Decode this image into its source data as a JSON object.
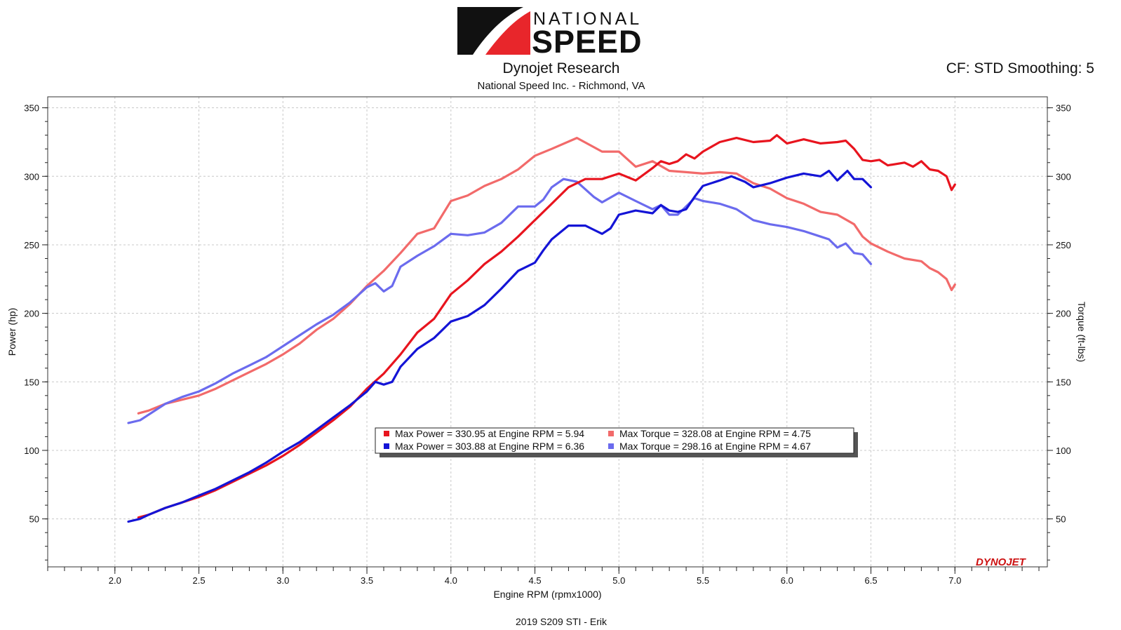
{
  "brand": {
    "logo_top": "NATIONAL",
    "logo_bottom": "SPEED",
    "dyno_mark": "DYNOJET",
    "logo_red": "#e8262b"
  },
  "header": {
    "title": "Dynojet Research",
    "subtitle": "National Speed Inc. - Richmond, VA",
    "settings": "CF: STD Smoothing: 5"
  },
  "footer": {
    "run_name": "2019 S209 STI - Erik"
  },
  "chart_data": {
    "type": "line",
    "xlabel": "Engine RPM (rpmx1000)",
    "ylabel_left": "Power (hp)",
    "ylabel_right": "Torque (ft-lbs)",
    "xlim": [
      1.6,
      7.55
    ],
    "ylim": [
      15,
      358
    ],
    "x_ticks": [
      2.0,
      2.5,
      3.0,
      3.5,
      4.0,
      4.5,
      5.0,
      5.5,
      6.0,
      6.5,
      7.0
    ],
    "x_tick_labels": [
      "2.0",
      "2.5",
      "3.0",
      "3.5",
      "4.0",
      "4.5",
      "5.0",
      "5.5",
      "6.0",
      "6.5",
      "7.0"
    ],
    "y_ticks": [
      50,
      100,
      150,
      200,
      250,
      300,
      350
    ],
    "y_tick_labels": [
      "50",
      "100",
      "150",
      "200",
      "250",
      "300",
      "350"
    ],
    "grid": true,
    "legend": [
      {
        "color": "#e8141e",
        "text": "Max Power = 330.95 at Engine RPM = 5.94"
      },
      {
        "color": "#f26a6a",
        "text": "Max Torque = 328.08 at Engine RPM = 4.75"
      },
      {
        "color": "#1414d6",
        "text": "Max Power = 303.88 at Engine RPM = 6.36"
      },
      {
        "color": "#6b6bee",
        "text": "Max Torque = 298.16 at Engine RPM = 4.67"
      }
    ],
    "series": [
      {
        "kind": "power",
        "color": "#e8141e",
        "points": [
          [
            2.14,
            51
          ],
          [
            2.2,
            53
          ],
          [
            2.3,
            58
          ],
          [
            2.4,
            62
          ],
          [
            2.5,
            66
          ],
          [
            2.6,
            71
          ],
          [
            2.7,
            77
          ],
          [
            2.8,
            83
          ],
          [
            2.9,
            89
          ],
          [
            3.0,
            96
          ],
          [
            3.1,
            104
          ],
          [
            3.2,
            113
          ],
          [
            3.3,
            122
          ],
          [
            3.4,
            132
          ],
          [
            3.5,
            145
          ],
          [
            3.6,
            156
          ],
          [
            3.7,
            170
          ],
          [
            3.8,
            186
          ],
          [
            3.9,
            196
          ],
          [
            4.0,
            214
          ],
          [
            4.1,
            224
          ],
          [
            4.2,
            236
          ],
          [
            4.3,
            245
          ],
          [
            4.4,
            256
          ],
          [
            4.5,
            268
          ],
          [
            4.6,
            280
          ],
          [
            4.7,
            292
          ],
          [
            4.8,
            298
          ],
          [
            4.9,
            298
          ],
          [
            5.0,
            302
          ],
          [
            5.1,
            297
          ],
          [
            5.2,
            306
          ],
          [
            5.25,
            311
          ],
          [
            5.3,
            309
          ],
          [
            5.35,
            311
          ],
          [
            5.4,
            316
          ],
          [
            5.45,
            313
          ],
          [
            5.5,
            318
          ],
          [
            5.6,
            325
          ],
          [
            5.7,
            328
          ],
          [
            5.8,
            325
          ],
          [
            5.9,
            326
          ],
          [
            5.94,
            330
          ],
          [
            6.0,
            324
          ],
          [
            6.1,
            327
          ],
          [
            6.2,
            324
          ],
          [
            6.3,
            325
          ],
          [
            6.35,
            326
          ],
          [
            6.4,
            320
          ],
          [
            6.45,
            312
          ],
          [
            6.5,
            311
          ],
          [
            6.55,
            312
          ],
          [
            6.6,
            308
          ],
          [
            6.7,
            310
          ],
          [
            6.75,
            307
          ],
          [
            6.8,
            311
          ],
          [
            6.85,
            305
          ],
          [
            6.9,
            304
          ],
          [
            6.95,
            300
          ],
          [
            6.98,
            290
          ],
          [
            7.0,
            294
          ]
        ]
      },
      {
        "kind": "torque",
        "color": "#f26a6a",
        "points": [
          [
            2.14,
            127
          ],
          [
            2.2,
            129
          ],
          [
            2.3,
            134
          ],
          [
            2.4,
            137
          ],
          [
            2.5,
            140
          ],
          [
            2.6,
            145
          ],
          [
            2.7,
            151
          ],
          [
            2.8,
            157
          ],
          [
            2.9,
            163
          ],
          [
            3.0,
            170
          ],
          [
            3.1,
            178
          ],
          [
            3.2,
            188
          ],
          [
            3.3,
            196
          ],
          [
            3.4,
            207
          ],
          [
            3.5,
            220
          ],
          [
            3.6,
            231
          ],
          [
            3.7,
            244
          ],
          [
            3.8,
            258
          ],
          [
            3.9,
            262
          ],
          [
            4.0,
            282
          ],
          [
            4.1,
            286
          ],
          [
            4.2,
            293
          ],
          [
            4.3,
            298
          ],
          [
            4.4,
            305
          ],
          [
            4.5,
            315
          ],
          [
            4.6,
            320
          ],
          [
            4.75,
            328
          ],
          [
            4.9,
            318
          ],
          [
            5.0,
            318
          ],
          [
            5.1,
            307
          ],
          [
            5.2,
            311
          ],
          [
            5.3,
            304
          ],
          [
            5.4,
            303
          ],
          [
            5.5,
            302
          ],
          [
            5.6,
            303
          ],
          [
            5.7,
            302
          ],
          [
            5.8,
            295
          ],
          [
            5.9,
            291
          ],
          [
            6.0,
            284
          ],
          [
            6.1,
            280
          ],
          [
            6.2,
            274
          ],
          [
            6.3,
            272
          ],
          [
            6.4,
            265
          ],
          [
            6.45,
            256
          ],
          [
            6.5,
            251
          ],
          [
            6.6,
            245
          ],
          [
            6.7,
            240
          ],
          [
            6.8,
            238
          ],
          [
            6.85,
            233
          ],
          [
            6.9,
            230
          ],
          [
            6.95,
            225
          ],
          [
            6.98,
            217
          ],
          [
            7.0,
            221
          ]
        ]
      },
      {
        "kind": "power",
        "color": "#1414d6",
        "points": [
          [
            2.08,
            48
          ],
          [
            2.15,
            50
          ],
          [
            2.2,
            53
          ],
          [
            2.3,
            58
          ],
          [
            2.4,
            62
          ],
          [
            2.5,
            67
          ],
          [
            2.6,
            72
          ],
          [
            2.7,
            78
          ],
          [
            2.8,
            84
          ],
          [
            2.9,
            91
          ],
          [
            3.0,
            99
          ],
          [
            3.1,
            106
          ],
          [
            3.2,
            115
          ],
          [
            3.3,
            124
          ],
          [
            3.4,
            133
          ],
          [
            3.5,
            143
          ],
          [
            3.55,
            150
          ],
          [
            3.6,
            148
          ],
          [
            3.65,
            150
          ],
          [
            3.7,
            161
          ],
          [
            3.8,
            174
          ],
          [
            3.9,
            182
          ],
          [
            4.0,
            194
          ],
          [
            4.1,
            198
          ],
          [
            4.2,
            206
          ],
          [
            4.3,
            218
          ],
          [
            4.4,
            231
          ],
          [
            4.5,
            237
          ],
          [
            4.55,
            246
          ],
          [
            4.6,
            254
          ],
          [
            4.7,
            264
          ],
          [
            4.8,
            264
          ],
          [
            4.85,
            261
          ],
          [
            4.9,
            258
          ],
          [
            4.95,
            262
          ],
          [
            5.0,
            272
          ],
          [
            5.1,
            275
          ],
          [
            5.2,
            273
          ],
          [
            5.25,
            279
          ],
          [
            5.3,
            275
          ],
          [
            5.35,
            274
          ],
          [
            5.4,
            276
          ],
          [
            5.45,
            285
          ],
          [
            5.5,
            293
          ],
          [
            5.6,
            297
          ],
          [
            5.67,
            300
          ],
          [
            5.75,
            296
          ],
          [
            5.8,
            292
          ],
          [
            5.9,
            295
          ],
          [
            6.0,
            299
          ],
          [
            6.1,
            302
          ],
          [
            6.2,
            300
          ],
          [
            6.25,
            304
          ],
          [
            6.3,
            297
          ],
          [
            6.36,
            304
          ],
          [
            6.4,
            298
          ],
          [
            6.45,
            298
          ],
          [
            6.5,
            292
          ]
        ]
      },
      {
        "kind": "torque",
        "color": "#6b6bee",
        "points": [
          [
            2.08,
            120
          ],
          [
            2.15,
            122
          ],
          [
            2.2,
            126
          ],
          [
            2.3,
            134
          ],
          [
            2.4,
            139
          ],
          [
            2.5,
            143
          ],
          [
            2.6,
            149
          ],
          [
            2.7,
            156
          ],
          [
            2.8,
            162
          ],
          [
            2.9,
            168
          ],
          [
            3.0,
            176
          ],
          [
            3.1,
            184
          ],
          [
            3.2,
            192
          ],
          [
            3.3,
            199
          ],
          [
            3.4,
            208
          ],
          [
            3.5,
            219
          ],
          [
            3.55,
            222
          ],
          [
            3.6,
            216
          ],
          [
            3.65,
            220
          ],
          [
            3.7,
            234
          ],
          [
            3.8,
            242
          ],
          [
            3.9,
            249
          ],
          [
            4.0,
            258
          ],
          [
            4.1,
            257
          ],
          [
            4.2,
            259
          ],
          [
            4.3,
            266
          ],
          [
            4.4,
            278
          ],
          [
            4.5,
            278
          ],
          [
            4.55,
            283
          ],
          [
            4.6,
            292
          ],
          [
            4.67,
            298
          ],
          [
            4.75,
            296
          ],
          [
            4.85,
            285
          ],
          [
            4.9,
            281
          ],
          [
            5.0,
            288
          ],
          [
            5.1,
            282
          ],
          [
            5.2,
            276
          ],
          [
            5.25,
            279
          ],
          [
            5.3,
            272
          ],
          [
            5.35,
            272
          ],
          [
            5.45,
            284
          ],
          [
            5.5,
            282
          ],
          [
            5.6,
            280
          ],
          [
            5.7,
            276
          ],
          [
            5.8,
            268
          ],
          [
            5.9,
            265
          ],
          [
            6.0,
            263
          ],
          [
            6.1,
            260
          ],
          [
            6.2,
            256
          ],
          [
            6.25,
            254
          ],
          [
            6.3,
            248
          ],
          [
            6.35,
            251
          ],
          [
            6.4,
            244
          ],
          [
            6.45,
            243
          ],
          [
            6.5,
            236
          ]
        ]
      }
    ]
  }
}
